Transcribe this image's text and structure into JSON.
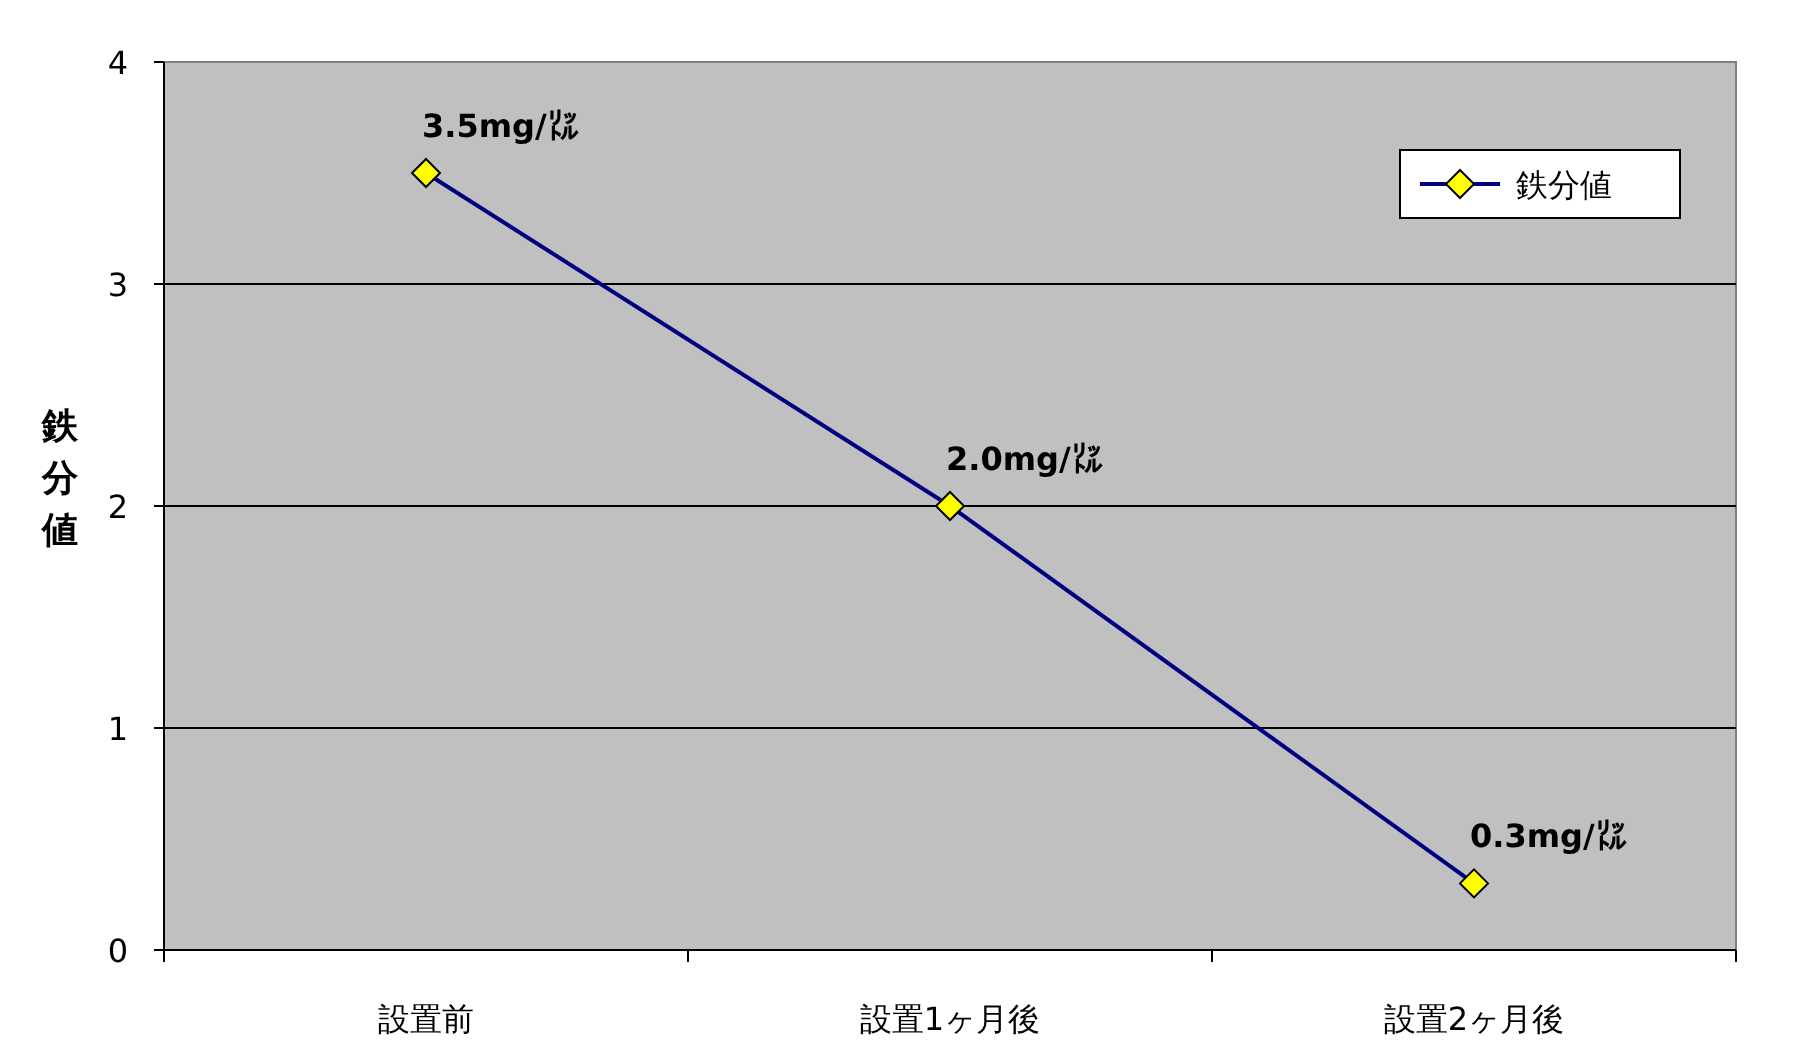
{
  "chart_data": {
    "type": "line",
    "ylabel": "鉄分値",
    "categories": [
      "設置前",
      "設置1ヶ月後",
      "設置2ヶ月後"
    ],
    "series": [
      {
        "name": "鉄分値",
        "color": "#000080",
        "values": [
          3.5,
          2.0,
          0.3
        ],
        "value_labels": [
          "3.5mg/㍑",
          "2.0mg/㍑",
          "0.3mg/㍑"
        ]
      }
    ],
    "ylim": [
      0,
      4
    ],
    "yticks": [
      0,
      1,
      2,
      3,
      4
    ],
    "grid": "y",
    "legend": "top right",
    "marker": "diamond",
    "line_style": "solid"
  }
}
